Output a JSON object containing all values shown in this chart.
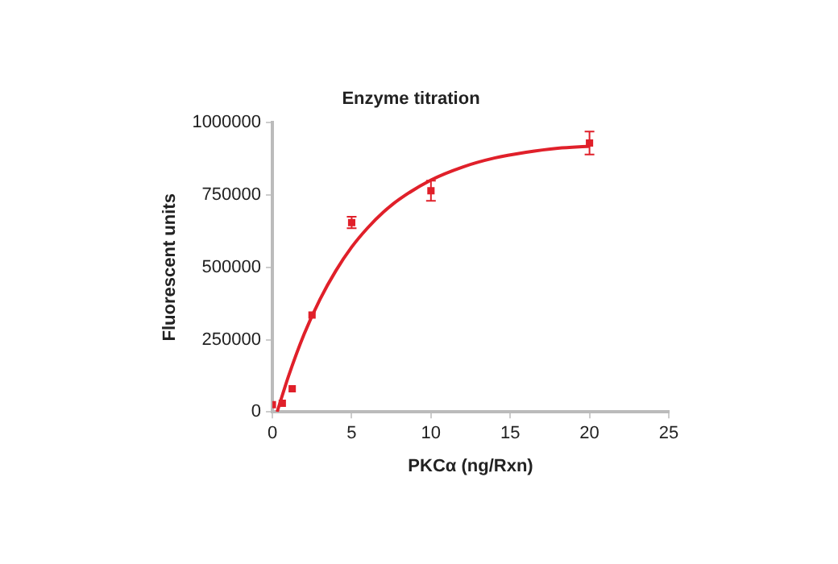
{
  "chart_data": {
    "type": "scatter",
    "title": "Enzyme titration",
    "xlabel": "PKCα (ng/Rxn)",
    "ylabel": "Fluorescent units",
    "xlim": [
      0,
      25
    ],
    "xticks": [
      0,
      5,
      10,
      15,
      20,
      25
    ],
    "ylim": [
      0,
      1000000
    ],
    "yticks": [
      0,
      250000,
      500000,
      750000,
      1000000
    ],
    "grid": false,
    "legend": false,
    "marker": "square",
    "series": [
      {
        "color": "#e0202a",
        "x": [
          0,
          0.625,
          1.25,
          2.5,
          5,
          10,
          20
        ],
        "values": [
          25000,
          30000,
          80000,
          335000,
          655000,
          765000,
          930000
        ],
        "errors": [
          null,
          null,
          null,
          null,
          20000,
          35000,
          40000
        ]
      },
      {
        "type": "line",
        "color": "#e0202a",
        "marker": "none",
        "x": [
          0.3,
          1,
          2,
          3,
          4,
          5,
          6,
          7,
          8,
          10,
          12,
          14,
          16,
          18,
          20
        ],
        "values": [
          0,
          121000,
          269000,
          389000,
          488000,
          570000,
          636000,
          691000,
          735000,
          802000,
          847000,
          878000,
          898000,
          912000,
          919000
        ]
      }
    ]
  }
}
